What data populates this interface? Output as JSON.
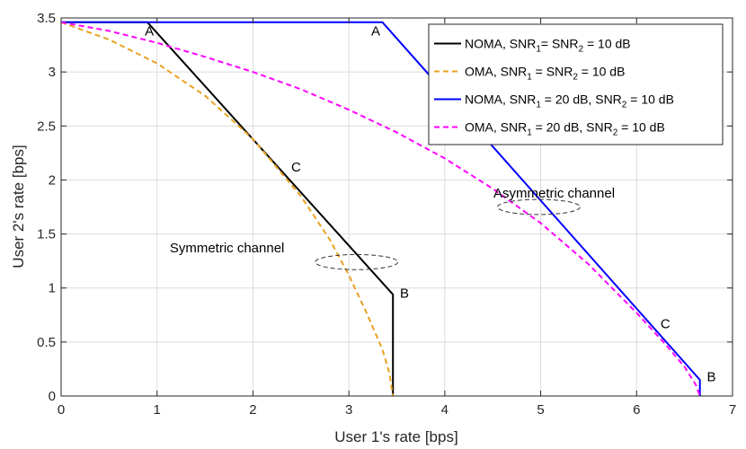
{
  "chart_data": {
    "type": "line",
    "title": "",
    "xlabel": "User 1's rate [bps]",
    "ylabel": "User 2's rate [bps]",
    "xlim": [
      0,
      7
    ],
    "ylim": [
      0,
      3.5
    ],
    "xticks": [
      0,
      1,
      2,
      3,
      4,
      5,
      6,
      7
    ],
    "xtick_labels": [
      "0",
      "1",
      "2",
      "3",
      "4",
      "5",
      "6",
      "7"
    ],
    "yticks": [
      0,
      0.5,
      1,
      1.5,
      2,
      2.5,
      3,
      3.5
    ],
    "ytick_labels": [
      "0",
      "0.5",
      "1",
      "1.5",
      "2",
      "2.5",
      "3",
      "3.5"
    ],
    "grid": true,
    "legend_position": "top-right",
    "series": [
      {
        "name": "NOMA, SNR1= SNR2 = 10 dB",
        "legend": {
          "parts": [
            [
              "NOMA, SNR",
              ""
            ],
            [
              "1",
              "sub"
            ],
            [
              "= SNR",
              ""
            ],
            [
              "2",
              "sub"
            ],
            [
              " = 10 dB",
              ""
            ]
          ]
        },
        "color": "#000000",
        "dash": "solid",
        "x": [
          0,
          0.9,
          3.46,
          3.46
        ],
        "y": [
          3.46,
          3.46,
          0.94,
          0
        ]
      },
      {
        "name": "OMA, SNR1 = SNR2 = 10 dB",
        "legend": {
          "parts": [
            [
              "OMA, SNR",
              ""
            ],
            [
              "1",
              "sub"
            ],
            [
              " = SNR",
              ""
            ],
            [
              "2",
              "sub"
            ],
            [
              " = 10 dB",
              ""
            ]
          ]
        },
        "color": "#E8A21F",
        "dash": "dashed",
        "x": [
          0,
          0.5,
          1.0,
          1.5,
          2.0,
          2.5,
          2.8,
          3.0,
          3.2,
          3.35,
          3.42,
          3.46
        ],
        "y": [
          3.46,
          3.3,
          3.08,
          2.78,
          2.38,
          1.85,
          1.45,
          1.12,
          0.74,
          0.43,
          0.22,
          0
        ]
      },
      {
        "name": "NOMA, SNR1 = 20 dB, SNR2 = 10 dB",
        "legend": {
          "parts": [
            [
              "NOMA, SNR",
              ""
            ],
            [
              "1",
              "sub"
            ],
            [
              " = 20 dB, SNR",
              ""
            ],
            [
              "2",
              "sub"
            ],
            [
              " = 10 dB",
              ""
            ]
          ]
        },
        "color": "#0000FF",
        "dash": "solid",
        "x": [
          0,
          3.35,
          6.66,
          6.66
        ],
        "y": [
          3.46,
          3.46,
          0.15,
          0
        ]
      },
      {
        "name": "OMA, SNR1 = 20 dB, SNR2 = 10 dB",
        "legend": {
          "parts": [
            [
              "OMA, SNR",
              ""
            ],
            [
              "1",
              "sub"
            ],
            [
              " = 20 dB, SNR",
              ""
            ],
            [
              "2",
              "sub"
            ],
            [
              " = 10 dB",
              ""
            ]
          ]
        },
        "color": "#FF00FF",
        "dash": "dashed",
        "x": [
          0,
          0.5,
          1.0,
          1.5,
          2.0,
          2.5,
          3.0,
          3.5,
          4.0,
          4.5,
          5.0,
          5.5,
          6.0,
          6.3,
          6.5,
          6.62,
          6.66
        ],
        "y": [
          3.46,
          3.38,
          3.27,
          3.14,
          3.0,
          2.84,
          2.65,
          2.44,
          2.2,
          1.92,
          1.6,
          1.22,
          0.77,
          0.48,
          0.27,
          0.1,
          0
        ]
      }
    ],
    "annotations": [
      {
        "text": "A",
        "x": 0.92,
        "y": 3.38
      },
      {
        "text": "A",
        "x": 3.28,
        "y": 3.38
      },
      {
        "text": "C",
        "x": 2.45,
        "y": 2.12
      },
      {
        "text": "C",
        "x": 6.3,
        "y": 0.67
      },
      {
        "text": "B",
        "x": 3.58,
        "y": 0.95
      },
      {
        "text": "B",
        "x": 6.78,
        "y": 0.18
      },
      {
        "text": "Symmetric channel",
        "x": 1.73,
        "y": 1.37
      },
      {
        "text": "Asymmetric channel",
        "x": 5.14,
        "y": 1.88
      }
    ],
    "ellipses": [
      {
        "name": "symmetric-channel-ellipse",
        "cx": 3.08,
        "cy": 1.24,
        "rx": 0.43,
        "ry": 0.07
      },
      {
        "name": "asymmetric-channel-ellipse",
        "cx": 4.98,
        "cy": 1.75,
        "rx": 0.43,
        "ry": 0.07
      }
    ]
  }
}
